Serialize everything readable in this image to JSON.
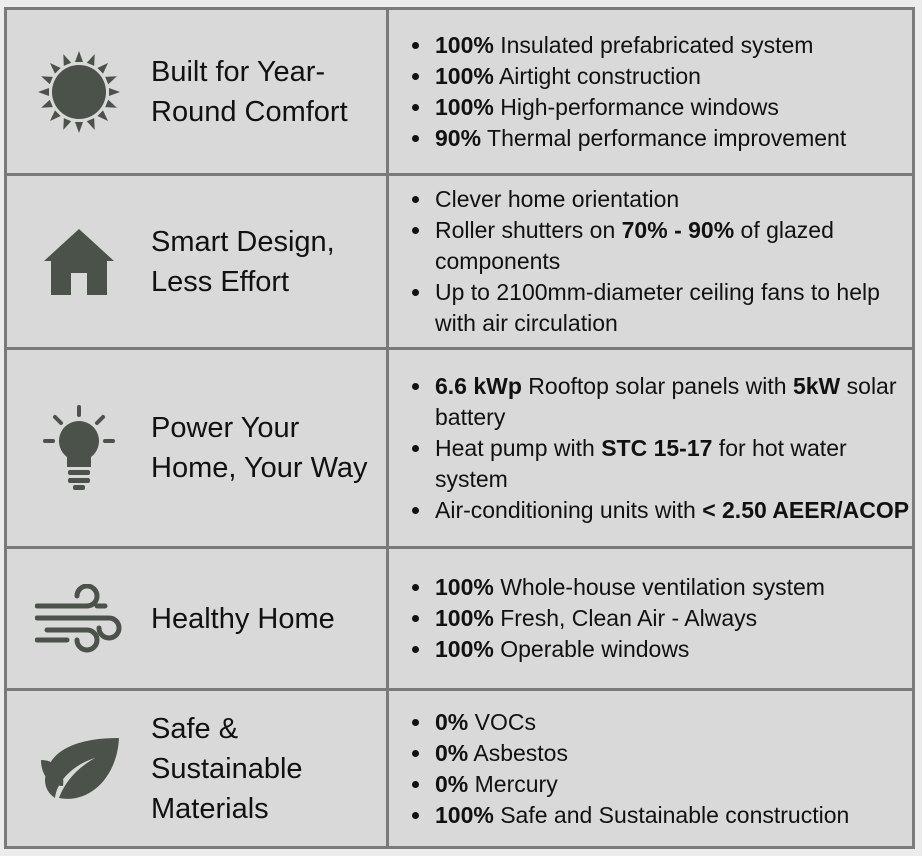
{
  "rows": [
    {
      "title": "Built for Year-Round Comfort",
      "bullets": [
        [
          {
            "text": "100%",
            "bold": true
          },
          {
            "text": " Insulated prefabricated system",
            "bold": false
          }
        ],
        [
          {
            "text": "100%",
            "bold": true
          },
          {
            "text": " Airtight construction",
            "bold": false
          }
        ],
        [
          {
            "text": "100%",
            "bold": true
          },
          {
            "text": " High-performance windows",
            "bold": false
          }
        ],
        [
          {
            "text": "90%",
            "bold": true
          },
          {
            "text": " Thermal performance improvement",
            "bold": false
          }
        ]
      ]
    },
    {
      "title": "Smart Design, Less Effort",
      "bullets": [
        [
          {
            "text": "Clever home orientation",
            "bold": false
          }
        ],
        [
          {
            "text": "Roller shutters on ",
            "bold": false
          },
          {
            "text": "70% - 90%",
            "bold": true
          },
          {
            "text": " of glazed components",
            "bold": false
          }
        ],
        [
          {
            "text": "Up to 2100mm-diameter ceiling fans to help with air circulation",
            "bold": false
          }
        ]
      ]
    },
    {
      "title": "Power Your Home, Your Way",
      "bullets": [
        [
          {
            "text": "6.6 kWp",
            "bold": true
          },
          {
            "text": " Rooftop solar panels with ",
            "bold": false
          },
          {
            "text": "5kW",
            "bold": true
          },
          {
            "text": " solar battery",
            "bold": false
          }
        ],
        [
          {
            "text": "Heat pump with ",
            "bold": false
          },
          {
            "text": "STC 15-17",
            "bold": true
          },
          {
            "text": " for hot water system",
            "bold": false
          }
        ],
        [
          {
            "text": "Air-conditioning units with ",
            "bold": false
          },
          {
            "text": "< 2.50 AEER/ACOP",
            "bold": true
          }
        ]
      ]
    },
    {
      "title": "Healthy Home",
      "bullets": [
        [
          {
            "text": "100%",
            "bold": true
          },
          {
            "text": " Whole-house ventilation system",
            "bold": false
          }
        ],
        [
          {
            "text": "100%",
            "bold": true
          },
          {
            "text": " Fresh, Clean Air - Always",
            "bold": false
          }
        ],
        [
          {
            "text": "100%",
            "bold": true
          },
          {
            "text": " Operable windows",
            "bold": false
          }
        ]
      ]
    },
    {
      "title": "Safe & Sustainable Materials",
      "bullets": [
        [
          {
            "text": "0%",
            "bold": true
          },
          {
            "text": " VOCs",
            "bold": false
          }
        ],
        [
          {
            "text": "0%",
            "bold": true
          },
          {
            "text": " Asbestos",
            "bold": false
          }
        ],
        [
          {
            "text": "0%",
            "bold": true
          },
          {
            "text": " Mercury",
            "bold": false
          }
        ],
        [
          {
            "text": "100%",
            "bold": true
          },
          {
            "text": " Safe and Sustainable construction",
            "bold": false
          }
        ]
      ]
    }
  ]
}
